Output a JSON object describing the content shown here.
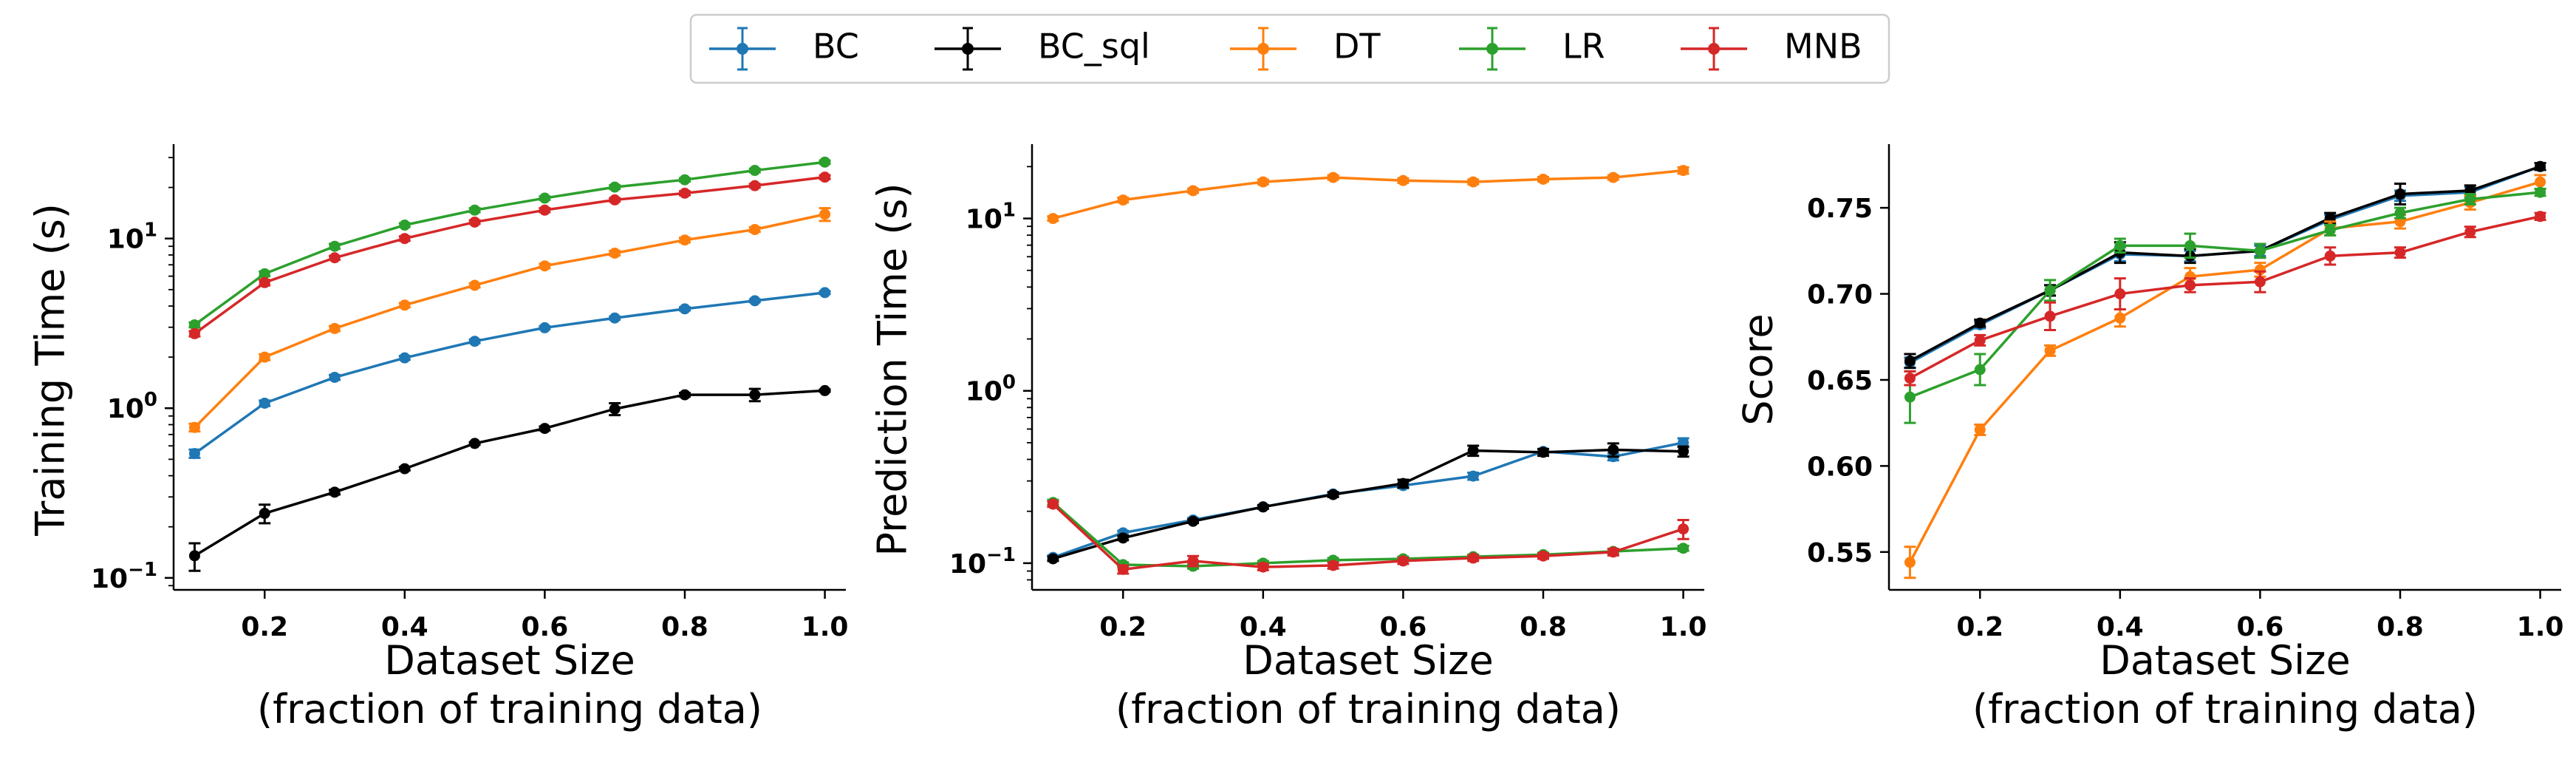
{
  "legend": {
    "location": "upper-center",
    "entries": [
      {
        "name": "BC",
        "color": "#1f77b4"
      },
      {
        "name": "BC_sql",
        "color": "#000000"
      },
      {
        "name": "DT",
        "color": "#ff7f0e"
      },
      {
        "name": "LR",
        "color": "#2ca02c"
      },
      {
        "name": "MNB",
        "color": "#d62728"
      }
    ]
  },
  "chart_data": [
    {
      "type": "line",
      "ylabel": "Training Time (s)",
      "xlabel": [
        "Dataset Size",
        "(fraction of training data)"
      ],
      "yscale": "log",
      "xlim": [
        0.07,
        1.03
      ],
      "ylim": [
        0.085,
        36
      ],
      "xticks": [
        0.2,
        0.4,
        0.6,
        0.8,
        1.0
      ],
      "xtick_labels": [
        "0.2",
        "0.4",
        "0.6",
        "0.8",
        "1.0"
      ],
      "yticks": [
        {
          "value": 0.1,
          "base": "10",
          "exp": "−1"
        },
        {
          "value": 1,
          "base": "10",
          "exp": "0"
        },
        {
          "value": 10,
          "base": "10",
          "exp": "1"
        }
      ],
      "grid": false,
      "x": [
        0.1,
        0.2,
        0.3,
        0.4,
        0.5,
        0.6,
        0.7,
        0.8,
        0.9,
        1.0
      ],
      "series": [
        {
          "name": "BC",
          "color": "#1f77b4",
          "values": [
            0.54,
            1.07,
            1.52,
            1.98,
            2.48,
            2.98,
            3.4,
            3.85,
            4.3,
            4.8
          ],
          "errors": [
            0.03,
            0.04,
            0.05,
            0.05,
            0.06,
            0.06,
            0.07,
            0.08,
            0.08,
            0.09
          ]
        },
        {
          "name": "BC_sql",
          "color": "#000000",
          "values": [
            0.135,
            0.24,
            0.32,
            0.44,
            0.62,
            0.76,
            0.99,
            1.2,
            1.2,
            1.27
          ],
          "errors": [
            0.025,
            0.03,
            0.01,
            0.01,
            0.01,
            0.02,
            0.08,
            0.03,
            0.1,
            0.02
          ]
        },
        {
          "name": "DT",
          "color": "#ff7f0e",
          "values": [
            0.77,
            2.0,
            2.95,
            4.05,
            5.3,
            6.9,
            8.2,
            9.8,
            11.3,
            13.9
          ],
          "errors": [
            0.04,
            0.08,
            0.1,
            0.12,
            0.15,
            0.2,
            0.25,
            0.3,
            0.35,
            1.2
          ]
        },
        {
          "name": "LR",
          "color": "#2ca02c",
          "values": [
            3.1,
            6.2,
            9.0,
            12.0,
            14.7,
            17.3,
            20.1,
            22.2,
            25.2,
            28.2
          ],
          "errors": [
            0.1,
            0.2,
            0.3,
            0.3,
            0.4,
            0.4,
            0.5,
            0.5,
            0.6,
            0.6
          ]
        },
        {
          "name": "MNB",
          "color": "#d62728",
          "values": [
            2.75,
            5.5,
            7.7,
            10.0,
            12.5,
            14.7,
            16.9,
            18.5,
            20.5,
            23.0
          ],
          "errors": [
            0.1,
            0.2,
            0.2,
            0.3,
            0.3,
            0.4,
            0.4,
            0.5,
            0.5,
            0.6
          ]
        }
      ]
    },
    {
      "type": "line",
      "ylabel": "Prediction Time (s)",
      "xlabel": [
        "Dataset Size",
        "(fraction of training data)"
      ],
      "yscale": "log",
      "xlim": [
        0.07,
        1.03
      ],
      "ylim": [
        0.07,
        27
      ],
      "xticks": [
        0.2,
        0.4,
        0.6,
        0.8,
        1.0
      ],
      "xtick_labels": [
        "0.2",
        "0.4",
        "0.6",
        "0.8",
        "1.0"
      ],
      "yticks": [
        {
          "value": 0.1,
          "base": "10",
          "exp": "−1"
        },
        {
          "value": 1,
          "base": "10",
          "exp": "0"
        },
        {
          "value": 10,
          "base": "10",
          "exp": "1"
        }
      ],
      "grid": false,
      "x": [
        0.1,
        0.2,
        0.3,
        0.4,
        0.5,
        0.6,
        0.7,
        0.8,
        0.9,
        1.0
      ],
      "series": [
        {
          "name": "BC",
          "color": "#1f77b4",
          "values": [
            0.108,
            0.15,
            0.178,
            0.212,
            0.252,
            0.282,
            0.32,
            0.445,
            0.415,
            0.5
          ],
          "errors": [
            0.003,
            0.004,
            0.005,
            0.005,
            0.006,
            0.01,
            0.015,
            0.015,
            0.02,
            0.03
          ]
        },
        {
          "name": "BC_sql",
          "color": "#000000",
          "values": [
            0.106,
            0.14,
            0.175,
            0.212,
            0.25,
            0.29,
            0.45,
            0.44,
            0.455,
            0.445
          ],
          "errors": [
            0.003,
            0.004,
            0.004,
            0.005,
            0.008,
            0.015,
            0.03,
            0.02,
            0.04,
            0.03
          ]
        },
        {
          "name": "DT",
          "color": "#ff7f0e",
          "values": [
            10.0,
            12.8,
            14.5,
            16.3,
            17.3,
            16.6,
            16.3,
            16.9,
            17.3,
            19.0
          ],
          "errors": [
            0.3,
            0.4,
            0.4,
            0.5,
            0.5,
            0.5,
            0.5,
            0.5,
            0.5,
            0.8
          ]
        },
        {
          "name": "LR",
          "color": "#2ca02c",
          "values": [
            0.225,
            0.098,
            0.096,
            0.1,
            0.104,
            0.106,
            0.109,
            0.112,
            0.117,
            0.122
          ],
          "errors": [
            0.008,
            0.003,
            0.003,
            0.003,
            0.003,
            0.003,
            0.003,
            0.003,
            0.004,
            0.004
          ]
        },
        {
          "name": "MNB",
          "color": "#d62728",
          "values": [
            0.22,
            0.092,
            0.103,
            0.095,
            0.097,
            0.103,
            0.107,
            0.11,
            0.116,
            0.158
          ],
          "errors": [
            0.008,
            0.005,
            0.007,
            0.004,
            0.004,
            0.004,
            0.004,
            0.004,
            0.005,
            0.02
          ]
        }
      ]
    },
    {
      "type": "line",
      "ylabel": "Score",
      "xlabel": [
        "Dataset Size",
        "(fraction of training data)"
      ],
      "yscale": "linear",
      "xlim": [
        0.07,
        1.03
      ],
      "ylim": [
        0.528,
        0.787
      ],
      "xticks": [
        0.2,
        0.4,
        0.6,
        0.8,
        1.0
      ],
      "xtick_labels": [
        "0.2",
        "0.4",
        "0.6",
        "0.8",
        "1.0"
      ],
      "yticks": [
        {
          "value": 0.55,
          "label": "0.55"
        },
        {
          "value": 0.6,
          "label": "0.60"
        },
        {
          "value": 0.65,
          "label": "0.65"
        },
        {
          "value": 0.7,
          "label": "0.70"
        },
        {
          "value": 0.75,
          "label": "0.75"
        }
      ],
      "grid": false,
      "x": [
        0.1,
        0.2,
        0.3,
        0.4,
        0.5,
        0.6,
        0.7,
        0.8,
        0.9,
        1.0
      ],
      "series": [
        {
          "name": "BC",
          "color": "#1f77b4",
          "values": [
            0.66,
            0.682,
            0.702,
            0.723,
            0.722,
            0.725,
            0.743,
            0.757,
            0.759,
            0.774
          ],
          "errors": [
            0.003,
            0.002,
            0.003,
            0.004,
            0.003,
            0.003,
            0.003,
            0.003,
            0.003,
            0.002
          ]
        },
        {
          "name": "BC_sql",
          "color": "#000000",
          "values": [
            0.661,
            0.683,
            0.702,
            0.724,
            0.722,
            0.725,
            0.744,
            0.758,
            0.76,
            0.774
          ],
          "errors": [
            0.004,
            0.002,
            0.003,
            0.006,
            0.004,
            0.004,
            0.003,
            0.006,
            0.003,
            0.002
          ]
        },
        {
          "name": "DT",
          "color": "#ff7f0e",
          "values": [
            0.544,
            0.621,
            0.667,
            0.686,
            0.71,
            0.714,
            0.738,
            0.742,
            0.753,
            0.765
          ],
          "errors": [
            0.009,
            0.003,
            0.003,
            0.005,
            0.005,
            0.004,
            0.004,
            0.004,
            0.004,
            0.004
          ]
        },
        {
          "name": "LR",
          "color": "#2ca02c",
          "values": [
            0.64,
            0.656,
            0.702,
            0.728,
            0.728,
            0.725,
            0.737,
            0.747,
            0.755,
            0.759
          ],
          "errors": [
            0.015,
            0.009,
            0.006,
            0.004,
            0.007,
            0.004,
            0.003,
            0.003,
            0.003,
            0.002
          ]
        },
        {
          "name": "MNB",
          "color": "#d62728",
          "values": [
            0.651,
            0.673,
            0.687,
            0.7,
            0.705,
            0.707,
            0.722,
            0.724,
            0.736,
            0.745
          ],
          "errors": [
            0.004,
            0.003,
            0.008,
            0.009,
            0.004,
            0.006,
            0.005,
            0.003,
            0.003,
            0.002
          ]
        }
      ]
    }
  ]
}
